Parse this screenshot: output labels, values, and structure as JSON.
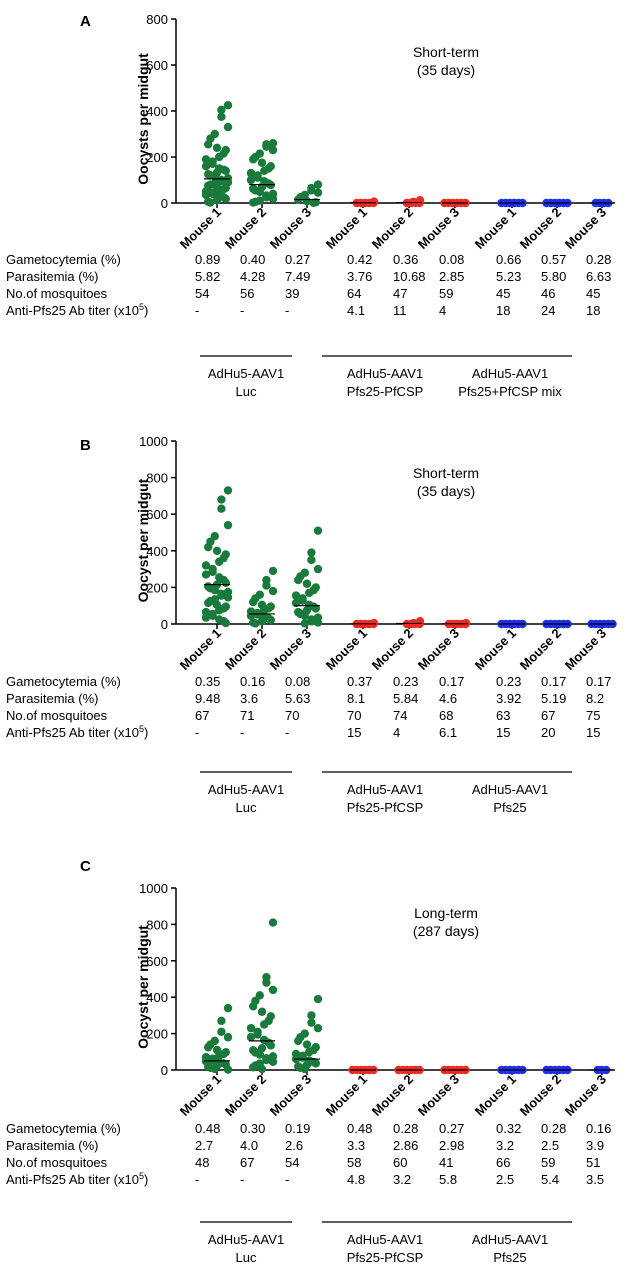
{
  "figure": {
    "groups": [
      "Mouse 1",
      "Mouse 2",
      "Mouse 3",
      "Mouse 1",
      "Mouse 2",
      "Mouse 3",
      "Mouse 1",
      "Mouse 2",
      "Mouse 3"
    ],
    "row_labels": [
      "Gametocytemia (%)",
      "Parasitemia (%)",
      "No.of mosquitoes",
      "Anti-Pfs25 Ab titer (x10",
      "5",
      ")"
    ],
    "colors": {
      "luc": "#1a7a3c",
      "pfs25_pfcsp": "#ee2a24",
      "third": "#1f2fe8",
      "axis": "#000000"
    }
  },
  "panels": [
    {
      "label": "A",
      "annotation": [
        "Short-term",
        "(35 days)"
      ],
      "table": {
        "Gametocytemia (%)": [
          "0.89",
          "0.40",
          "0.27",
          "0.42",
          "0.36",
          "0.08",
          "0.66",
          "0.57",
          "0.28"
        ],
        "Parasitemia (%)": [
          "5.82",
          "4.28",
          "7.49",
          "3.76",
          "10.68",
          "2.85",
          "5.23",
          "5.80",
          "6.63"
        ],
        "No.of mosquitoes": [
          "54",
          "56",
          "39",
          "64",
          "47",
          "59",
          "45",
          "46",
          "45"
        ],
        "Anti-Pfs25 Ab titer": [
          "-",
          "-",
          "-",
          "4.1",
          "11",
          "4",
          "18",
          "24",
          "18"
        ]
      },
      "vaccine_groups": [
        {
          "line1": "AdHu5-AAV1",
          "line2": "Luc"
        },
        {
          "line1": "AdHu5-AAV1",
          "line2": "Pfs25-PfCSP"
        },
        {
          "line1": "AdHu5-AAV1",
          "line2": "Pfs25+PfCSP mix"
        }
      ]
    },
    {
      "label": "B",
      "annotation": [
        "Short-term",
        "(35 days)"
      ],
      "table": {
        "Gametocytemia (%)": [
          "0.35",
          "0.16",
          "0.08",
          "0.37",
          "0.23",
          "0.17",
          "0.23",
          "0.17",
          "0.17"
        ],
        "Parasitemia (%)": [
          "9.48",
          "3.6",
          "5.63",
          "8.1",
          "5.84",
          "4.6",
          "3.92",
          "5.19",
          "8.2"
        ],
        "No.of mosquitoes": [
          "67",
          "71",
          "70",
          "70",
          "74",
          "68",
          "63",
          "67",
          "75"
        ],
        "Anti-Pfs25 Ab titer": [
          "-",
          "-",
          "-",
          "15",
          "4",
          "6.1",
          "15",
          "20",
          "15"
        ]
      },
      "vaccine_groups": [
        {
          "line1": "AdHu5-AAV1",
          "line2": "Luc"
        },
        {
          "line1": "AdHu5-AAV1",
          "line2": "Pfs25-PfCSP"
        },
        {
          "line1": "AdHu5-AAV1",
          "line2": "Pfs25"
        }
      ]
    },
    {
      "label": "C",
      "annotation": [
        "Long-term",
        "(287 days)"
      ],
      "table": {
        "Gametocytemia (%)": [
          "0.48",
          "0.30",
          "0.19",
          "0.48",
          "0.28",
          "0.27",
          "0.32",
          "0.28",
          "0.16"
        ],
        "Parasitemia (%)": [
          "2.7",
          "4.0",
          "2.6",
          "3.3",
          "2.86",
          "2.98",
          "3.2",
          "2.5",
          "3.9"
        ],
        "No.of mosquitoes": [
          "48",
          "67",
          "54",
          "58",
          "60",
          "41",
          "66",
          "59",
          "51"
        ],
        "Anti-Pfs25 Ab titer": [
          "-",
          "-",
          "-",
          "4.8",
          "3.2",
          "5.8",
          "2.5",
          "5.4",
          "3.5"
        ]
      },
      "vaccine_groups": [
        {
          "line1": "AdHu5-AAV1",
          "line2": "Luc"
        },
        {
          "line1": "AdHu5-AAV1",
          "line2": "Pfs25-PfCSP"
        },
        {
          "line1": "AdHu5-AAV1",
          "line2": "Pfs25"
        }
      ]
    }
  ],
  "chart_data": [
    {
      "type": "scatter",
      "panel": "A",
      "title": "",
      "ylabel": "Oocysts per midgut",
      "xlabel": "",
      "ylim": [
        0,
        800
      ],
      "yticks": [
        "0",
        "200",
        "400",
        "600",
        "800"
      ],
      "categories": [
        "Mouse 1",
        "Mouse 2",
        "Mouse 3",
        "Mouse 1",
        "Mouse 2",
        "Mouse 3",
        "Mouse 1",
        "Mouse 2",
        "Mouse 3"
      ],
      "series": [
        {
          "name": "AdHu5-AAV1 Luc",
          "color_key": "luc",
          "groups": [
            0,
            1,
            2
          ],
          "values": [
            [
              425,
              405,
              375,
              330,
              300,
              280,
              255,
              240,
              230,
              215,
              200,
              190,
              180,
              170,
              160,
              150,
              145,
              140,
              132,
              125,
              120,
              115,
              108,
              100,
              95,
              90,
              85,
              80,
              75,
              70,
              65,
              60,
              55,
              50,
              45,
              40,
              35,
              30,
              25,
              18,
              12,
              6,
              2
            ],
            [
              260,
              255,
              245,
              230,
              215,
              200,
              190,
              175,
              160,
              150,
              140,
              130,
              120,
              110,
              100,
              95,
              85,
              78,
              70,
              62,
              55,
              48,
              40,
              33,
              25,
              18,
              10,
              5,
              2
            ],
            [
              80,
              65,
              55,
              45,
              35,
              25,
              15,
              8,
              3,
              1
            ]
          ],
          "means": [
            105,
            80,
            15
          ]
        },
        {
          "name": "AdHu5-AAV1 Pfs25-PfCSP",
          "color_key": "pfs25_pfcsp",
          "groups": [
            3,
            4,
            5
          ],
          "values": [
            [
              6,
              0,
              0,
              0,
              0,
              0
            ],
            [
              12,
              5,
              0,
              0,
              0,
              0
            ],
            [
              0,
              0,
              0,
              0,
              0,
              0
            ]
          ],
          "means": [
            1,
            2,
            0
          ]
        },
        {
          "name": "AdHu5-AAV1 Pfs25+PfCSP mix",
          "color_key": "third",
          "groups": [
            6,
            7,
            8
          ],
          "values": [
            [
              0,
              0,
              0,
              0,
              0,
              0
            ],
            [
              0,
              0,
              0,
              0,
              0,
              0
            ],
            [
              0,
              0,
              0,
              0
            ]
          ],
          "means": [
            0,
            0,
            0
          ]
        }
      ]
    },
    {
      "type": "scatter",
      "panel": "B",
      "title": "",
      "ylabel": "Oocyst per midgut",
      "xlabel": "",
      "ylim": [
        0,
        1000
      ],
      "yticks": [
        "0",
        "200",
        "400",
        "600",
        "800",
        "1000"
      ],
      "categories": [
        "Mouse 1",
        "Mouse 2",
        "Mouse 3",
        "Mouse 1",
        "Mouse 2",
        "Mouse 3",
        "Mouse 1",
        "Mouse 2",
        "Mouse 3"
      ],
      "series": [
        {
          "name": "AdHu5-AAV1 Luc",
          "color_key": "luc",
          "groups": [
            0,
            1,
            2
          ],
          "values": [
            [
              730,
              680,
              630,
              540,
              480,
              450,
              420,
              400,
              380,
              360,
              340,
              320,
              300,
              285,
              270,
              255,
              240,
              225,
              215,
              205,
              195,
              185,
              175,
              165,
              155,
              145,
              135,
              125,
              115,
              105,
              95,
              85,
              75,
              65,
              55,
              45,
              35,
              25,
              15,
              5
            ],
            [
              290,
              240,
              210,
              180,
              160,
              140,
              120,
              105,
              95,
              85,
              75,
              68,
              60,
              52,
              45,
              38,
              30,
              22,
              15,
              8,
              3
            ],
            [
              510,
              390,
              350,
              300,
              280,
              260,
              240,
              220,
              200,
              185,
              170,
              155,
              140,
              128,
              115,
              105,
              95,
              85,
              75,
              65,
              55,
              45,
              35,
              25,
              15,
              8,
              3
            ]
          ],
          "means": [
            215,
            55,
            100
          ]
        },
        {
          "name": "AdHu5-AAV1 Pfs25-PfCSP",
          "color_key": "pfs25_pfcsp",
          "groups": [
            3,
            4,
            5
          ],
          "values": [
            [
              5,
              0,
              0,
              0,
              0,
              0
            ],
            [
              15,
              5,
              0,
              0,
              0,
              0
            ],
            [
              5,
              0,
              0,
              0,
              0,
              0
            ]
          ],
          "means": [
            1,
            3,
            1
          ]
        },
        {
          "name": "AdHu5-AAV1 Pfs25",
          "color_key": "third",
          "groups": [
            6,
            7,
            8
          ],
          "values": [
            [
              0,
              0,
              0,
              0,
              0,
              0
            ],
            [
              0,
              0,
              0,
              0,
              0,
              0
            ],
            [
              0,
              0,
              0,
              0,
              0,
              0
            ]
          ],
          "means": [
            0,
            0,
            0
          ]
        }
      ]
    },
    {
      "type": "scatter",
      "panel": "C",
      "title": "",
      "ylabel": "Oocyst per midgut",
      "xlabel": "",
      "ylim": [
        0,
        1000
      ],
      "yticks": [
        "0",
        "200",
        "400",
        "600",
        "800",
        "1000"
      ],
      "categories": [
        "Mouse 1",
        "Mouse 2",
        "Mouse 3",
        "Mouse 1",
        "Mouse 2",
        "Mouse 3",
        "Mouse 1",
        "Mouse 2",
        "Mouse 3"
      ],
      "series": [
        {
          "name": "AdHu5-AAV1 Luc",
          "color_key": "luc",
          "groups": [
            0,
            1,
            2
          ],
          "values": [
            [
              340,
              270,
              210,
              180,
              160,
              140,
              125,
              110,
              98,
              88,
              78,
              70,
              62,
              55,
              48,
              42,
              36,
              30,
              24,
              18,
              12,
              6,
              2
            ],
            [
              810,
              510,
              480,
              440,
              410,
              380,
              350,
              320,
              295,
              270,
              250,
              230,
              210,
              195,
              180,
              165,
              150,
              135,
              120,
              108,
              96,
              85,
              75,
              65,
              55,
              45,
              35,
              25,
              15,
              5
            ],
            [
              390,
              300,
              260,
              230,
              200,
              180,
              160,
              140,
              125,
              110,
              98,
              88,
              78,
              68,
              60,
              52,
              44,
              36,
              28,
              20,
              12,
              5
            ]
          ],
          "means": [
            50,
            160,
            60
          ]
        },
        {
          "name": "AdHu5-AAV1 Pfs25-PfCSP",
          "color_key": "pfs25_pfcsp",
          "groups": [
            3,
            4,
            5
          ],
          "values": [
            [
              0,
              0,
              0,
              0,
              0,
              0
            ],
            [
              0,
              0,
              0,
              0,
              0,
              0
            ],
            [
              0,
              0,
              0,
              0,
              0,
              0
            ]
          ],
          "means": [
            0,
            0,
            0
          ]
        },
        {
          "name": "AdHu5-AAV1 Pfs25",
          "color_key": "third",
          "groups": [
            6,
            7,
            8
          ],
          "values": [
            [
              0,
              0,
              0,
              0,
              0,
              0
            ],
            [
              0,
              0,
              0,
              0,
              0,
              0
            ],
            [
              0,
              0,
              0
            ]
          ],
          "means": [
            0,
            0,
            0
          ]
        }
      ]
    }
  ]
}
